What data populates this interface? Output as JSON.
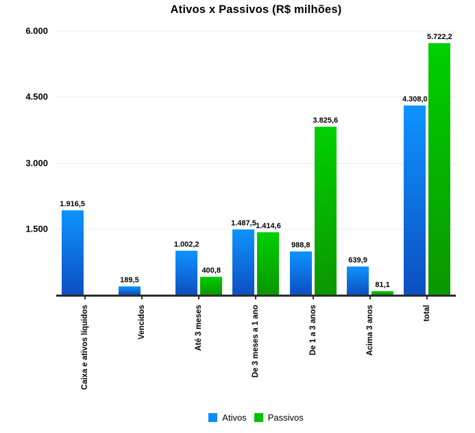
{
  "title": "Ativos x Passivos (R$ milhões)",
  "colors": {
    "ativos_top": "#0d94ff",
    "ativos_bottom": "#0d4fc0",
    "passivos_top": "#00d000",
    "passivos_bottom": "#0a9700",
    "legend_ativos": "#0a8cff",
    "legend_passivos": "#00c200",
    "axis_line": "#2b2b2b",
    "gridline": "#ececec"
  },
  "legend": {
    "position": "bottom",
    "items": [
      {
        "label": "Ativos",
        "color": "#0a8cff"
      },
      {
        "label": "Passivos",
        "color": "#00c200"
      }
    ]
  },
  "y_axis": {
    "tick_labels": [
      "6.000",
      "4.500",
      "3.000",
      "1.500"
    ],
    "tick_values": [
      6000,
      4500,
      3000,
      1500
    ],
    "max": 6000
  },
  "chart_data": {
    "type": "bar",
    "title": "Ativos x Passivos (R$ milhões)",
    "xlabel": "",
    "ylabel": "",
    "ylim": [
      0,
      6000
    ],
    "grid": true,
    "legend_position": "bottom",
    "categories": [
      "Caixa e ativos líquidos",
      "Vencidos",
      "Até 3 meses",
      "De 3 meses a 1 ano",
      "De 1 a 3 anos",
      "Acima 3 anos",
      "total"
    ],
    "series": [
      {
        "name": "Ativos",
        "color_top": "#0d94ff",
        "color_bottom": "#0d4fc0",
        "values": [
          1916.5,
          189.5,
          1002.2,
          1487.5,
          988.8,
          639.9,
          4308.0
        ],
        "labels": [
          "1.916,5",
          "189,5",
          "1.002,2",
          "1.487,5",
          "988,8",
          "639,9",
          "4.308,0"
        ]
      },
      {
        "name": "Passivos",
        "color_top": "#00d000",
        "color_bottom": "#0a9700",
        "values": [
          null,
          null,
          400.8,
          1414.6,
          3825.6,
          81.1,
          5722.2
        ],
        "labels": [
          null,
          null,
          "400,8",
          "1.414,6",
          "3.825,6",
          "81,1",
          "5.722,2"
        ]
      }
    ]
  }
}
